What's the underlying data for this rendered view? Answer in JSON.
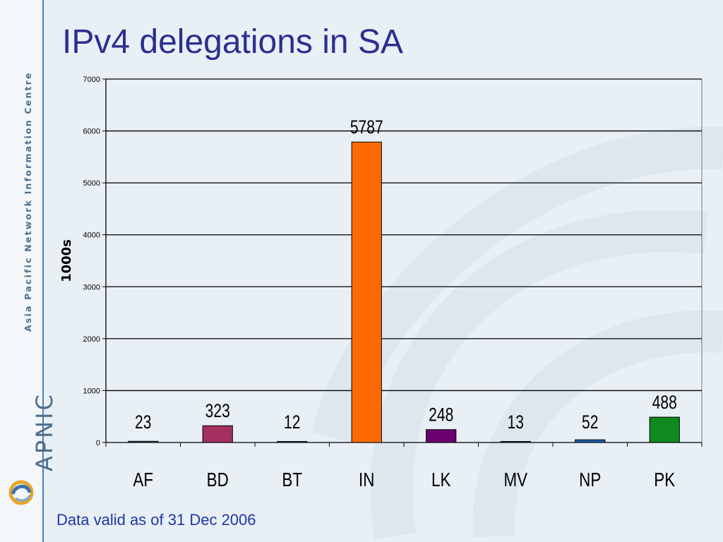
{
  "slide": {
    "title": "IPv4 delegations in SA",
    "footnote": "Data valid as of 31 Dec 2006",
    "side_org_name": "Asia Pacific Network Information Centre",
    "side_brand": "APNIC",
    "logo_icon": "apnic-swirl-logo-icon",
    "accent_color": "#2b2f8f",
    "footnote_color": "#1f35a8"
  },
  "chart_data": {
    "type": "bar",
    "title": "",
    "xlabel": "",
    "ylabel": "1000s",
    "ylim": [
      0,
      7000
    ],
    "yticks": [
      0,
      1000,
      2000,
      3000,
      4000,
      5000,
      6000,
      7000
    ],
    "grid": true,
    "categories": [
      "AF",
      "BD",
      "BT",
      "IN",
      "LK",
      "MV",
      "NP",
      "PK"
    ],
    "values": [
      23,
      323,
      12,
      5787,
      248,
      13,
      52,
      488
    ],
    "bar_colors": [
      "#2f5f8f",
      "#a3305f",
      "#2f5f8f",
      "#ff6a00",
      "#6a0070",
      "#2f5f8f",
      "#1f5faf",
      "#0f8a1f"
    ]
  }
}
